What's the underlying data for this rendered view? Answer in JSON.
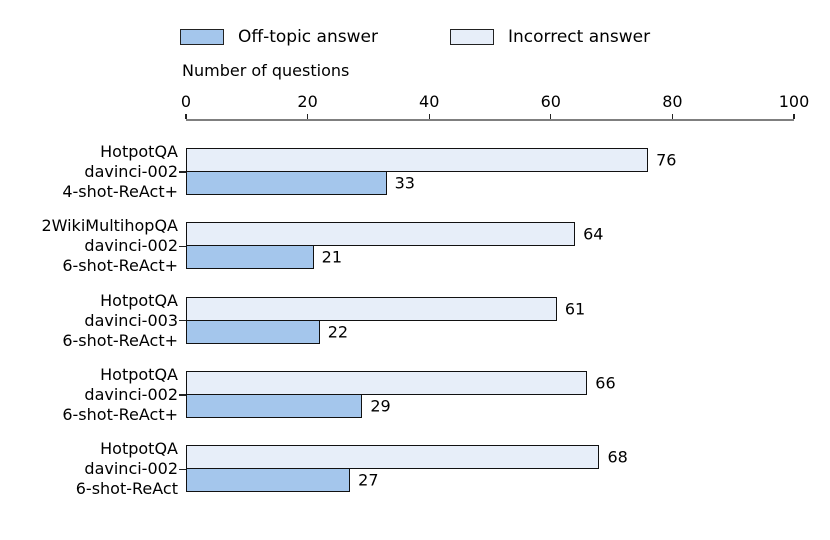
{
  "chart_data": {
    "type": "bar",
    "orientation": "horizontal",
    "axis_label": "Number of questions",
    "xlim": [
      0,
      100
    ],
    "xticks": [
      "0",
      "20",
      "40",
      "60",
      "80",
      "100"
    ],
    "grid": false,
    "legend_position": "top",
    "legend": [
      {
        "label": "Off-topic answer",
        "color": "#a4c6ec"
      },
      {
        "label": "Incorrect answer",
        "color": "#e7eef9"
      }
    ],
    "categories": [
      [
        "HotpotQA",
        "davinci-002",
        "4-shot-ReAct+"
      ],
      [
        "2WikiMultihopQA",
        "davinci-002",
        "6-shot-ReAct+"
      ],
      [
        "HotpotQA",
        "davinci-003",
        "6-shot-ReAct+"
      ],
      [
        "HotpotQA",
        "davinci-002",
        "6-shot-ReAct+"
      ],
      [
        "HotpotQA",
        "davinci-002",
        "6-shot-ReAct"
      ]
    ],
    "series": [
      {
        "name": "Incorrect answer",
        "color": "#e7eef9",
        "values": [
          76,
          64,
          61,
          66,
          68
        ]
      },
      {
        "name": "Off-topic answer",
        "color": "#a4c6ec",
        "values": [
          33,
          21,
          22,
          29,
          27
        ]
      }
    ],
    "colors": {
      "bar_edge": "#111111",
      "axis_spine": "#7f7f7f",
      "text": "#000000"
    }
  }
}
